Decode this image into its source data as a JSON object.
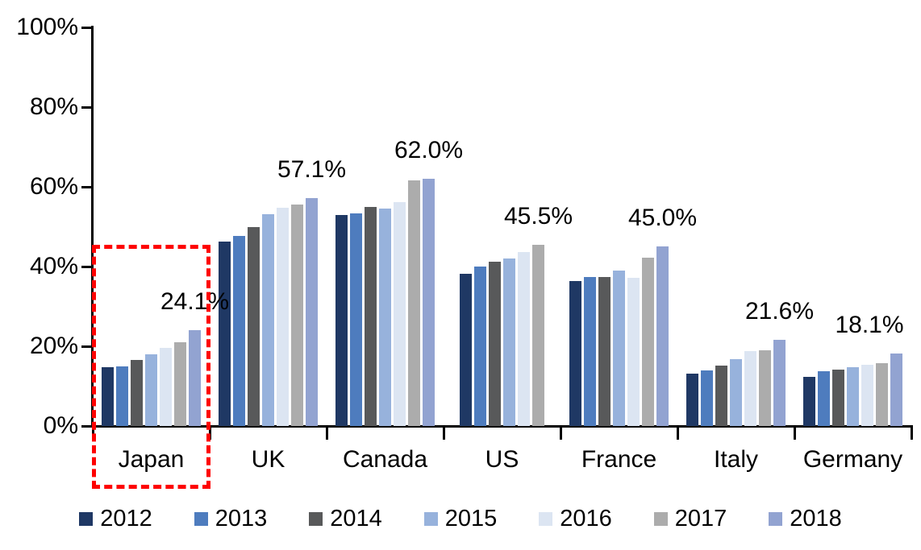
{
  "chart_data": {
    "type": "bar",
    "title": "",
    "xlabel": "",
    "ylabel": "",
    "unit": "%",
    "categories": [
      "Japan",
      "UK",
      "Canada",
      "US",
      "France",
      "Italy",
      "Germany"
    ],
    "series": [
      {
        "name": "2012",
        "color": "#1F3864",
        "values": [
          14.7,
          46.2,
          53.0,
          38.2,
          36.3,
          13.1,
          12.3
        ]
      },
      {
        "name": "2013",
        "color": "#4E7CBE",
        "values": [
          15.0,
          47.7,
          53.4,
          39.9,
          37.4,
          13.9,
          13.8
        ]
      },
      {
        "name": "2014",
        "color": "#58595A",
        "values": [
          16.5,
          49.9,
          54.9,
          41.2,
          37.4,
          15.2,
          14.2
        ]
      },
      {
        "name": "2015",
        "color": "#97B2DC",
        "values": [
          18.0,
          53.1,
          54.6,
          42.1,
          39.0,
          16.7,
          14.7
        ]
      },
      {
        "name": "2016",
        "color": "#DCE5F2",
        "values": [
          19.6,
          54.8,
          56.2,
          43.6,
          37.1,
          18.7,
          15.3
        ]
      },
      {
        "name": "2017",
        "color": "#ACACAC",
        "values": [
          21.0,
          55.6,
          61.6,
          45.5,
          42.2,
          18.9,
          15.8
        ]
      },
      {
        "name": "2018",
        "color": "#92A3D1",
        "values": [
          24.1,
          57.1,
          62.0,
          null,
          45.0,
          21.6,
          18.1
        ]
      }
    ],
    "value_labels": [
      "24.1%",
      "57.1%",
      "62.0%",
      "45.5%",
      "45.0%",
      "21.6%",
      "18.1%"
    ],
    "ylim": [
      0,
      100
    ],
    "ytick_values": [
      0,
      20,
      40,
      60,
      80,
      100
    ],
    "ytick_labels": [
      "0%",
      "20%",
      "40%",
      "60%",
      "80%",
      "100%"
    ],
    "grid": false,
    "legend_position": "bottom",
    "highlight": {
      "category": "Japan",
      "style": "red dashed rectangle",
      "color": "#FE0000"
    }
  }
}
